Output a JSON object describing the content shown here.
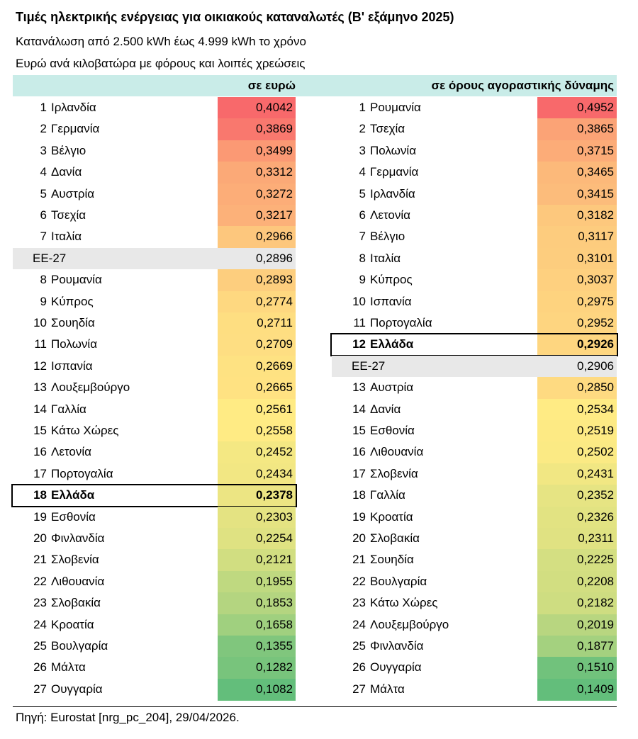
{
  "title": "Τιμές ηλεκτρικής ενέργειας για οικιακούς καταναλωτές (Β' εξάμηνο 2025)",
  "subtitle1": "Κατανάλωση από 2.500 kWh έως 4.999 kWh το χρόνο",
  "subtitle2": "Ευρώ ανά κιλοβατώρα με φόρους και λοιπές χρεώσεις",
  "source": "Πηγή: Eurostat [nrg_pc_204], 29/04/2026.",
  "colors": {
    "header_bg": "#c9ece8",
    "eu_row_bg": "#e8e8e8",
    "scale_high": "#f8696b",
    "scale_mid": "#ffeb84",
    "scale_low": "#63be7b"
  },
  "chart_data": {
    "type": "table",
    "tables": [
      {
        "header": "σε ευρώ",
        "rows": [
          {
            "rank": "1",
            "country": "Ιρλανδία",
            "value": "0,4042",
            "v": 0.4042
          },
          {
            "rank": "2",
            "country": "Γερμανία",
            "value": "0,3869",
            "v": 0.3869
          },
          {
            "rank": "3",
            "country": "Βέλγιο",
            "value": "0,3499",
            "v": 0.3499
          },
          {
            "rank": "4",
            "country": "Δανία",
            "value": "0,3312",
            "v": 0.3312
          },
          {
            "rank": "5",
            "country": "Αυστρία",
            "value": "0,3272",
            "v": 0.3272
          },
          {
            "rank": "6",
            "country": "Τσεχία",
            "value": "0,3217",
            "v": 0.3217
          },
          {
            "rank": "7",
            "country": "Ιταλία",
            "value": "0,2966",
            "v": 0.2966
          },
          {
            "rank": "",
            "country": "ΕΕ-27",
            "value": "0,2896",
            "v": 0.2896,
            "eu": true
          },
          {
            "rank": "8",
            "country": "Ρουμανία",
            "value": "0,2893",
            "v": 0.2893
          },
          {
            "rank": "9",
            "country": "Κύπρος",
            "value": "0,2774",
            "v": 0.2774
          },
          {
            "rank": "10",
            "country": "Σουηδία",
            "value": "0,2711",
            "v": 0.2711
          },
          {
            "rank": "11",
            "country": "Πολωνία",
            "value": "0,2709",
            "v": 0.2709
          },
          {
            "rank": "12",
            "country": "Ισπανία",
            "value": "0,2669",
            "v": 0.2669
          },
          {
            "rank": "13",
            "country": "Λουξεμβούργο",
            "value": "0,2665",
            "v": 0.2665
          },
          {
            "rank": "14",
            "country": "Γαλλία",
            "value": "0,2561",
            "v": 0.2561
          },
          {
            "rank": "15",
            "country": "Κάτω Χώρες",
            "value": "0,2558",
            "v": 0.2558
          },
          {
            "rank": "16",
            "country": "Λετονία",
            "value": "0,2452",
            "v": 0.2452
          },
          {
            "rank": "17",
            "country": "Πορτογαλία",
            "value": "0,2434",
            "v": 0.2434
          },
          {
            "rank": "18",
            "country": "Ελλάδα",
            "value": "0,2378",
            "v": 0.2378,
            "highlight": true
          },
          {
            "rank": "19",
            "country": "Εσθονία",
            "value": "0,2303",
            "v": 0.2303
          },
          {
            "rank": "20",
            "country": "Φινλανδία",
            "value": "0,2254",
            "v": 0.2254
          },
          {
            "rank": "21",
            "country": "Σλοβενία",
            "value": "0,2121",
            "v": 0.2121
          },
          {
            "rank": "22",
            "country": "Λιθουανία",
            "value": "0,1955",
            "v": 0.1955
          },
          {
            "rank": "23",
            "country": "Σλοβακία",
            "value": "0,1853",
            "v": 0.1853
          },
          {
            "rank": "24",
            "country": "Κροατία",
            "value": "0,1658",
            "v": 0.1658
          },
          {
            "rank": "25",
            "country": "Βουλγαρία",
            "value": "0,1355",
            "v": 0.1355
          },
          {
            "rank": "26",
            "country": "Μάλτα",
            "value": "0,1282",
            "v": 0.1282
          },
          {
            "rank": "27",
            "country": "Ουγγαρία",
            "value": "0,1082",
            "v": 0.1082
          }
        ]
      },
      {
        "header": "σε όρους αγοραστικής δύναμης",
        "rows": [
          {
            "rank": "1",
            "country": "Ρουμανία",
            "value": "0,4952",
            "v": 0.4952
          },
          {
            "rank": "2",
            "country": "Τσεχία",
            "value": "0,3865",
            "v": 0.3865
          },
          {
            "rank": "3",
            "country": "Πολωνία",
            "value": "0,3715",
            "v": 0.3715
          },
          {
            "rank": "4",
            "country": "Γερμανία",
            "value": "0,3465",
            "v": 0.3465
          },
          {
            "rank": "5",
            "country": "Ιρλανδία",
            "value": "0,3415",
            "v": 0.3415
          },
          {
            "rank": "6",
            "country": "Λετονία",
            "value": "0,3182",
            "v": 0.3182
          },
          {
            "rank": "7",
            "country": "Βέλγιο",
            "value": "0,3117",
            "v": 0.3117
          },
          {
            "rank": "8",
            "country": "Ιταλία",
            "value": "0,3101",
            "v": 0.3101
          },
          {
            "rank": "9",
            "country": "Κύπρος",
            "value": "0,3037",
            "v": 0.3037
          },
          {
            "rank": "10",
            "country": "Ισπανία",
            "value": "0,2975",
            "v": 0.2975
          },
          {
            "rank": "11",
            "country": "Πορτογαλία",
            "value": "0,2952",
            "v": 0.2952
          },
          {
            "rank": "12",
            "country": "Ελλάδα",
            "value": "0,2926",
            "v": 0.2926,
            "highlight": true
          },
          {
            "rank": "",
            "country": "ΕΕ-27",
            "value": "0,2906",
            "v": 0.2906,
            "eu": true
          },
          {
            "rank": "13",
            "country": "Αυστρία",
            "value": "0,2850",
            "v": 0.285
          },
          {
            "rank": "14",
            "country": "Δανία",
            "value": "0,2534",
            "v": 0.2534
          },
          {
            "rank": "15",
            "country": "Εσθονία",
            "value": "0,2519",
            "v": 0.2519
          },
          {
            "rank": "16",
            "country": "Λιθουανία",
            "value": "0,2502",
            "v": 0.2502
          },
          {
            "rank": "17",
            "country": "Σλοβενία",
            "value": "0,2431",
            "v": 0.2431
          },
          {
            "rank": "18",
            "country": "Γαλλία",
            "value": "0,2352",
            "v": 0.2352
          },
          {
            "rank": "19",
            "country": "Κροατία",
            "value": "0,2326",
            "v": 0.2326
          },
          {
            "rank": "20",
            "country": "Σλοβακία",
            "value": "0,2311",
            "v": 0.2311
          },
          {
            "rank": "21",
            "country": "Σουηδία",
            "value": "0,2225",
            "v": 0.2225
          },
          {
            "rank": "22",
            "country": "Βουλγαρία",
            "value": "0,2208",
            "v": 0.2208
          },
          {
            "rank": "23",
            "country": "Κάτω Χώρες",
            "value": "0,2182",
            "v": 0.2182
          },
          {
            "rank": "24",
            "country": "Λουξεμβούργο",
            "value": "0,2019",
            "v": 0.2019
          },
          {
            "rank": "25",
            "country": "Φινλανδία",
            "value": "0,1877",
            "v": 0.1877
          },
          {
            "rank": "26",
            "country": "Ουγγαρία",
            "value": "0,1510",
            "v": 0.151
          },
          {
            "rank": "27",
            "country": "Μάλτα",
            "value": "0,1409",
            "v": 0.1409
          }
        ]
      }
    ]
  }
}
